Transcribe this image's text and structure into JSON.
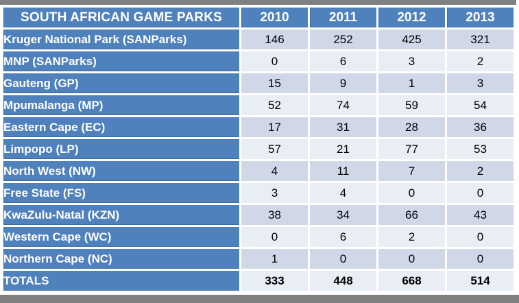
{
  "page": {
    "top_bar_color": "#808080",
    "bottom_bar_color": "#808080",
    "background": "#FFFFFF"
  },
  "colors": {
    "accent_blue": "#4F81BD",
    "band_dark": "#D0D8E8",
    "band_light": "#E9EDF4",
    "header_text": "#FFFFFF",
    "body_text": "#000000"
  },
  "table": {
    "title": "SOUTH AFRICAN GAME PARKS",
    "years": [
      "2010",
      "2011",
      "2012",
      "2013"
    ],
    "rows": [
      {
        "label": "Kruger National Park (SANParks)",
        "values": [
          "146",
          "252",
          "425",
          "321"
        ]
      },
      {
        "label": "MNP (SANParks)",
        "values": [
          "0",
          "6",
          "3",
          "2"
        ]
      },
      {
        "label": "Gauteng (GP)",
        "values": [
          "15",
          "9",
          "1",
          "3"
        ]
      },
      {
        "label": "Mpumalanga (MP)",
        "values": [
          "52",
          "74",
          "59",
          "54"
        ]
      },
      {
        "label": "Eastern Cape (EC)",
        "values": [
          "17",
          "31",
          "28",
          "36"
        ]
      },
      {
        "label": "Limpopo (LP)",
        "values": [
          "57",
          "21",
          "77",
          "53"
        ]
      },
      {
        "label": "North West (NW)",
        "values": [
          "4",
          "11",
          "7",
          "2"
        ]
      },
      {
        "label": "Free State (FS)",
        "values": [
          "3",
          "4",
          "0",
          "0"
        ]
      },
      {
        "label": "KwaZulu-Natal (KZN)",
        "values": [
          "38",
          "34",
          "66",
          "43"
        ]
      },
      {
        "label": "Western Cape (WC)",
        "values": [
          "0",
          "6",
          "2",
          "0"
        ]
      },
      {
        "label": "Northern Cape (NC)",
        "values": [
          "1",
          "0",
          "0",
          "0"
        ]
      }
    ],
    "totals": {
      "label": "TOTALS",
      "values": [
        "333",
        "448",
        "668",
        "514"
      ]
    }
  },
  "chart_data": {
    "type": "table",
    "title": "SOUTH AFRICAN GAME PARKS",
    "categories": [
      2010,
      2011,
      2012,
      2013
    ],
    "series": [
      {
        "name": "Kruger National Park (SANParks)",
        "values": [
          146,
          252,
          425,
          321
        ]
      },
      {
        "name": "MNP (SANParks)",
        "values": [
          0,
          6,
          3,
          2
        ]
      },
      {
        "name": "Gauteng (GP)",
        "values": [
          15,
          9,
          1,
          3
        ]
      },
      {
        "name": "Mpumalanga (MP)",
        "values": [
          52,
          74,
          59,
          54
        ]
      },
      {
        "name": "Eastern Cape (EC)",
        "values": [
          17,
          31,
          28,
          36
        ]
      },
      {
        "name": "Limpopo (LP)",
        "values": [
          57,
          21,
          77,
          53
        ]
      },
      {
        "name": "North West (NW)",
        "values": [
          4,
          11,
          7,
          2
        ]
      },
      {
        "name": "Free State (FS)",
        "values": [
          3,
          4,
          0,
          0
        ]
      },
      {
        "name": "KwaZulu-Natal (KZN)",
        "values": [
          38,
          34,
          66,
          43
        ]
      },
      {
        "name": "Western Cape (WC)",
        "values": [
          0,
          6,
          2,
          0
        ]
      },
      {
        "name": "Northern Cape (NC)",
        "values": [
          1,
          0,
          0,
          0
        ]
      }
    ],
    "totals": {
      "name": "TOTALS",
      "values": [
        333,
        448,
        668,
        514
      ]
    }
  }
}
